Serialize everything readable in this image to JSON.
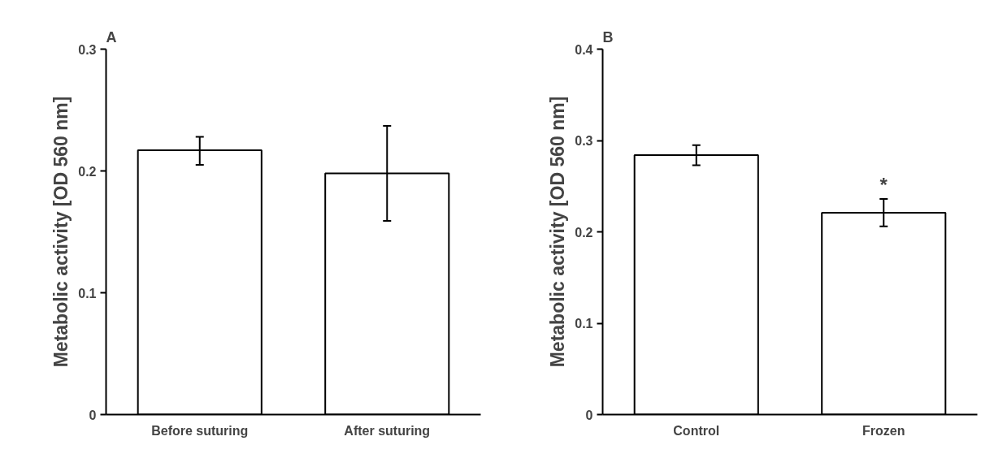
{
  "chart_data": [
    {
      "type": "bar",
      "title": "A",
      "ylabel": "Metabolic activity [OD 560 nm]",
      "categories": [
        "Before suturing",
        "After suturing"
      ],
      "values": [
        0.217,
        0.198
      ],
      "errors": [
        [
          0.205,
          0.228
        ],
        [
          0.159,
          0.237
        ]
      ],
      "color": "#ffffff",
      "ylim": [
        0,
        0.3
      ],
      "yticks": [
        0,
        0.1,
        0.2,
        0.3
      ],
      "grid": false
    },
    {
      "type": "bar",
      "title": "B",
      "ylabel": "Metabolic activity [OD 560 nm]",
      "categories": [
        "Control",
        "Frozen"
      ],
      "values": [
        0.284,
        0.221
      ],
      "errors": [
        [
          0.273,
          0.295
        ],
        [
          0.206,
          0.236
        ]
      ],
      "color": "#ffffff",
      "ylim": [
        0,
        0.4
      ],
      "yticks": [
        0,
        0.1,
        0.2,
        0.3,
        0.4
      ],
      "grid": false,
      "annotations": [
        "*"
      ]
    }
  ]
}
